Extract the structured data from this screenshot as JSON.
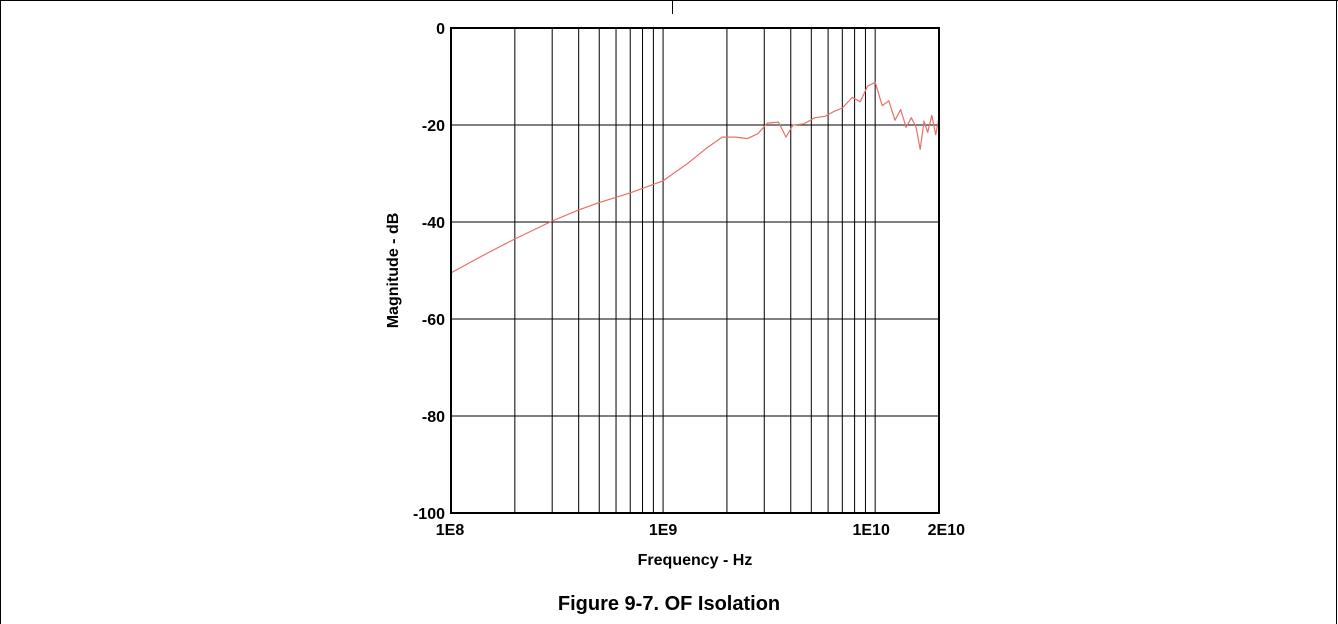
{
  "figure": {
    "caption": "Figure 9-7. OF Isolation"
  },
  "chart_data": {
    "type": "line",
    "title": "",
    "xlabel": "Frequency - Hz",
    "ylabel": "Magnitude - dB",
    "x_scale": "log",
    "xlim": [
      100000000,
      20000000000
    ],
    "ylim": [
      -100,
      0
    ],
    "grid": true,
    "x_ticks": [
      {
        "value": 100000000,
        "label": "1E8"
      },
      {
        "value": 1000000000,
        "label": "1E9"
      },
      {
        "value": 10000000000,
        "label": "1E10"
      },
      {
        "value": 20000000000,
        "label": "2E10"
      }
    ],
    "y_ticks": [
      {
        "value": 0,
        "label": "0"
      },
      {
        "value": -20,
        "label": "-20"
      },
      {
        "value": -40,
        "label": "-40"
      },
      {
        "value": -60,
        "label": "-60"
      },
      {
        "value": -80,
        "label": "-80"
      },
      {
        "value": -100,
        "label": "-100"
      }
    ],
    "series": [
      {
        "color": "#e8706a",
        "x": [
          100000000,
          150000000,
          200000000,
          300000000,
          400000000,
          500000000,
          700000000,
          1000000000,
          1300000000,
          1600000000,
          1900000000,
          2200000000,
          2500000000,
          2800000000,
          3100000000,
          3500000000,
          3800000000,
          4100000000,
          4600000000,
          5200000000,
          5800000000,
          6400000000,
          7000000000,
          7800000000,
          8500000000,
          9200000000,
          10000000000,
          10800000000,
          11600000000,
          12400000000,
          13200000000,
          14000000000,
          14800000000,
          15600000000,
          16300000000,
          17000000000,
          17700000000,
          18500000000,
          19300000000,
          20000000000
        ],
        "y": [
          -50.5,
          -46.3,
          -43.5,
          -39.8,
          -37.5,
          -36.0,
          -34.0,
          -31.5,
          -28.0,
          -24.8,
          -22.5,
          -22.5,
          -22.8,
          -21.8,
          -19.6,
          -19.4,
          -22.5,
          -20.0,
          -19.8,
          -18.5,
          -18.2,
          -17.2,
          -16.5,
          -14.3,
          -15.2,
          -12.0,
          -11.2,
          -16.0,
          -15.0,
          -19.0,
          -16.8,
          -20.5,
          -18.5,
          -20.5,
          -25.0,
          -19.2,
          -21.5,
          -18.0,
          -22.0,
          -18.5
        ]
      }
    ]
  }
}
